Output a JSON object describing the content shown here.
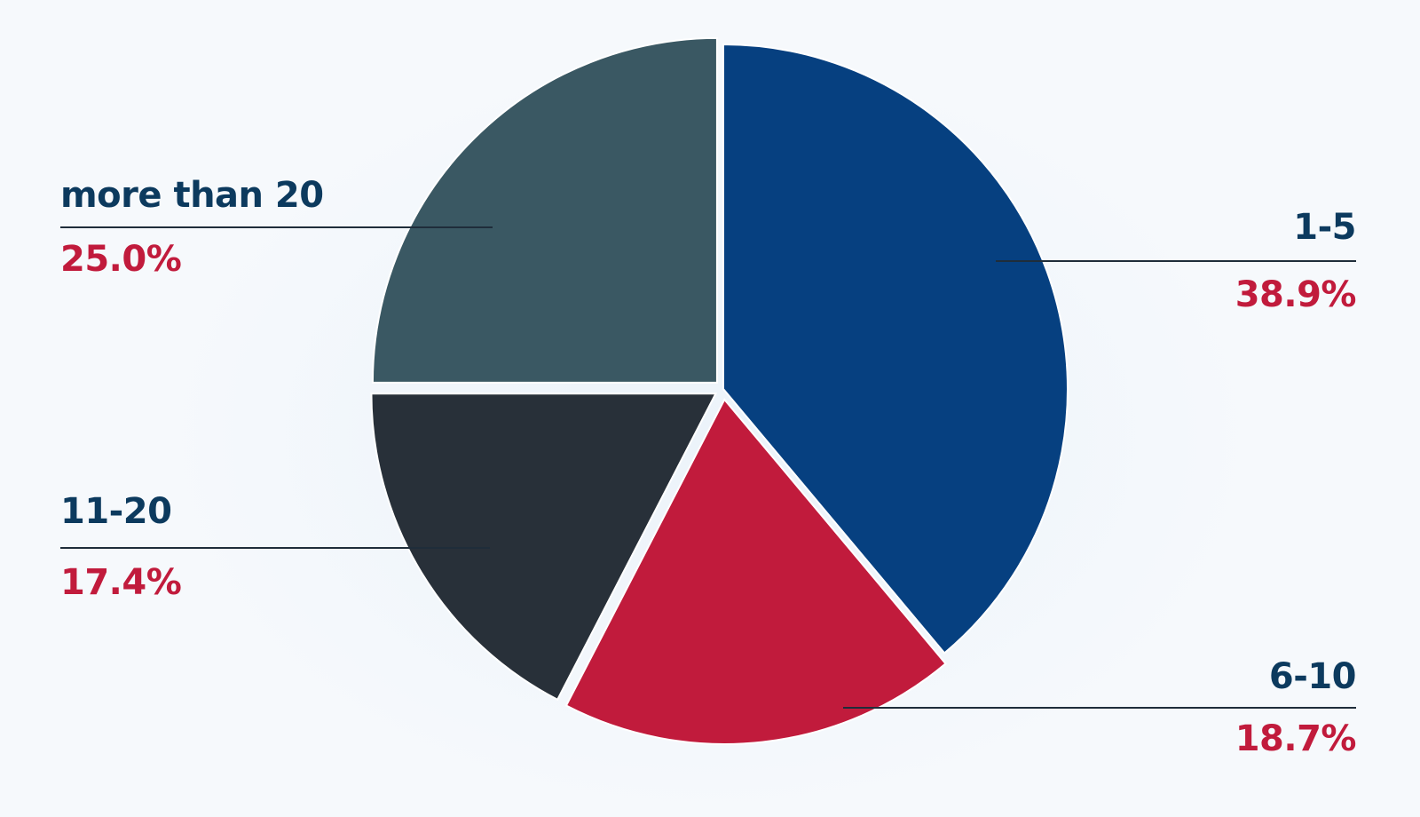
{
  "chart_data": {
    "type": "pie",
    "slices": [
      {
        "label": "1-5",
        "value": 38.9,
        "display": "38.9%",
        "color": "#064080",
        "offset": 0
      },
      {
        "label": "6-10",
        "value": 18.7,
        "display": "18.7%",
        "color": "#c11b3c",
        "offset": 12
      },
      {
        "label": "11-20",
        "value": 17.4,
        "display": "17.4%",
        "color": "#283039",
        "offset": 10
      },
      {
        "label": "more than 20",
        "value": 25.0,
        "display": "25.0%",
        "color": "#3a5863",
        "offset": 10
      }
    ],
    "start_angle_deg": 0,
    "direction": "clockwise"
  }
}
